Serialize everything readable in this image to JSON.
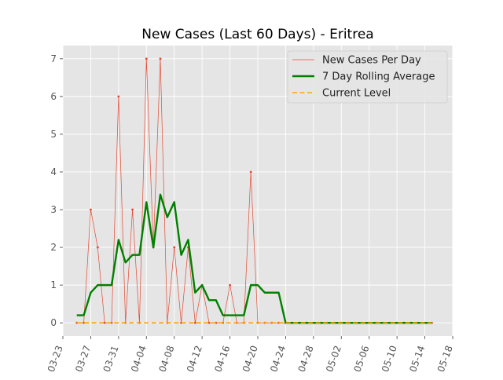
{
  "chart_data": {
    "type": "line",
    "title": "New Cases (Last 60 Days) - Eritrea",
    "xlabel": "",
    "ylabel": "",
    "x_start": "2020-03-25",
    "x_end": "2020-05-15",
    "xlim": [
      "2020-03-23",
      "2020-05-18"
    ],
    "ylim": [
      -0.35,
      7.35
    ],
    "x_ticks": [
      "03-23",
      "03-27",
      "03-31",
      "04-04",
      "04-08",
      "04-12",
      "04-16",
      "04-20",
      "04-24",
      "04-28",
      "05-02",
      "05-06",
      "05-10",
      "05-14",
      "05-18"
    ],
    "y_ticks": [
      "0",
      "1",
      "2",
      "3",
      "4",
      "5",
      "6",
      "7"
    ],
    "grid": true,
    "legend_position": "top-right",
    "series": [
      {
        "name": "New Cases Per Day",
        "style": "thin-line-with-dots",
        "color": "#e24a33",
        "values": [
          0,
          0,
          3,
          2,
          0,
          0,
          6,
          0,
          3,
          0,
          7,
          2,
          7,
          0,
          2,
          0,
          2,
          0,
          1,
          0,
          0,
          0,
          1,
          0,
          0,
          4,
          0,
          0,
          0,
          0,
          0,
          0,
          0,
          0,
          0,
          0,
          0,
          0,
          0,
          0,
          0,
          0,
          0,
          0,
          0,
          0,
          0,
          0,
          0,
          0,
          0,
          0
        ]
      },
      {
        "name": "7 Day Rolling Average",
        "style": "thick-line",
        "color": "#008000",
        "values": [
          0.2,
          0.2,
          0.8,
          1.0,
          1.0,
          1.0,
          2.2,
          1.6,
          1.8,
          1.8,
          3.2,
          2.0,
          3.4,
          2.8,
          3.2,
          1.8,
          2.2,
          0.8,
          1.0,
          0.6,
          0.6,
          0.2,
          0.2,
          0.2,
          0.2,
          1.0,
          1.0,
          0.8,
          0.8,
          0.8,
          0,
          0,
          0,
          0,
          0,
          0,
          0,
          0,
          0,
          0,
          0,
          0,
          0,
          0,
          0,
          0,
          0,
          0,
          0,
          0,
          0,
          0
        ]
      },
      {
        "name": "Current Level",
        "style": "dashed-line",
        "color": "#ffa500",
        "values": [
          0,
          0,
          0,
          0,
          0,
          0,
          0,
          0,
          0,
          0,
          0,
          0,
          0,
          0,
          0,
          0,
          0,
          0,
          0,
          0,
          0,
          0,
          0,
          0,
          0,
          0,
          0,
          0,
          0,
          0,
          0,
          0,
          0,
          0,
          0,
          0,
          0,
          0,
          0,
          0,
          0,
          0,
          0,
          0,
          0,
          0,
          0,
          0,
          0,
          0,
          0,
          0
        ]
      }
    ]
  }
}
